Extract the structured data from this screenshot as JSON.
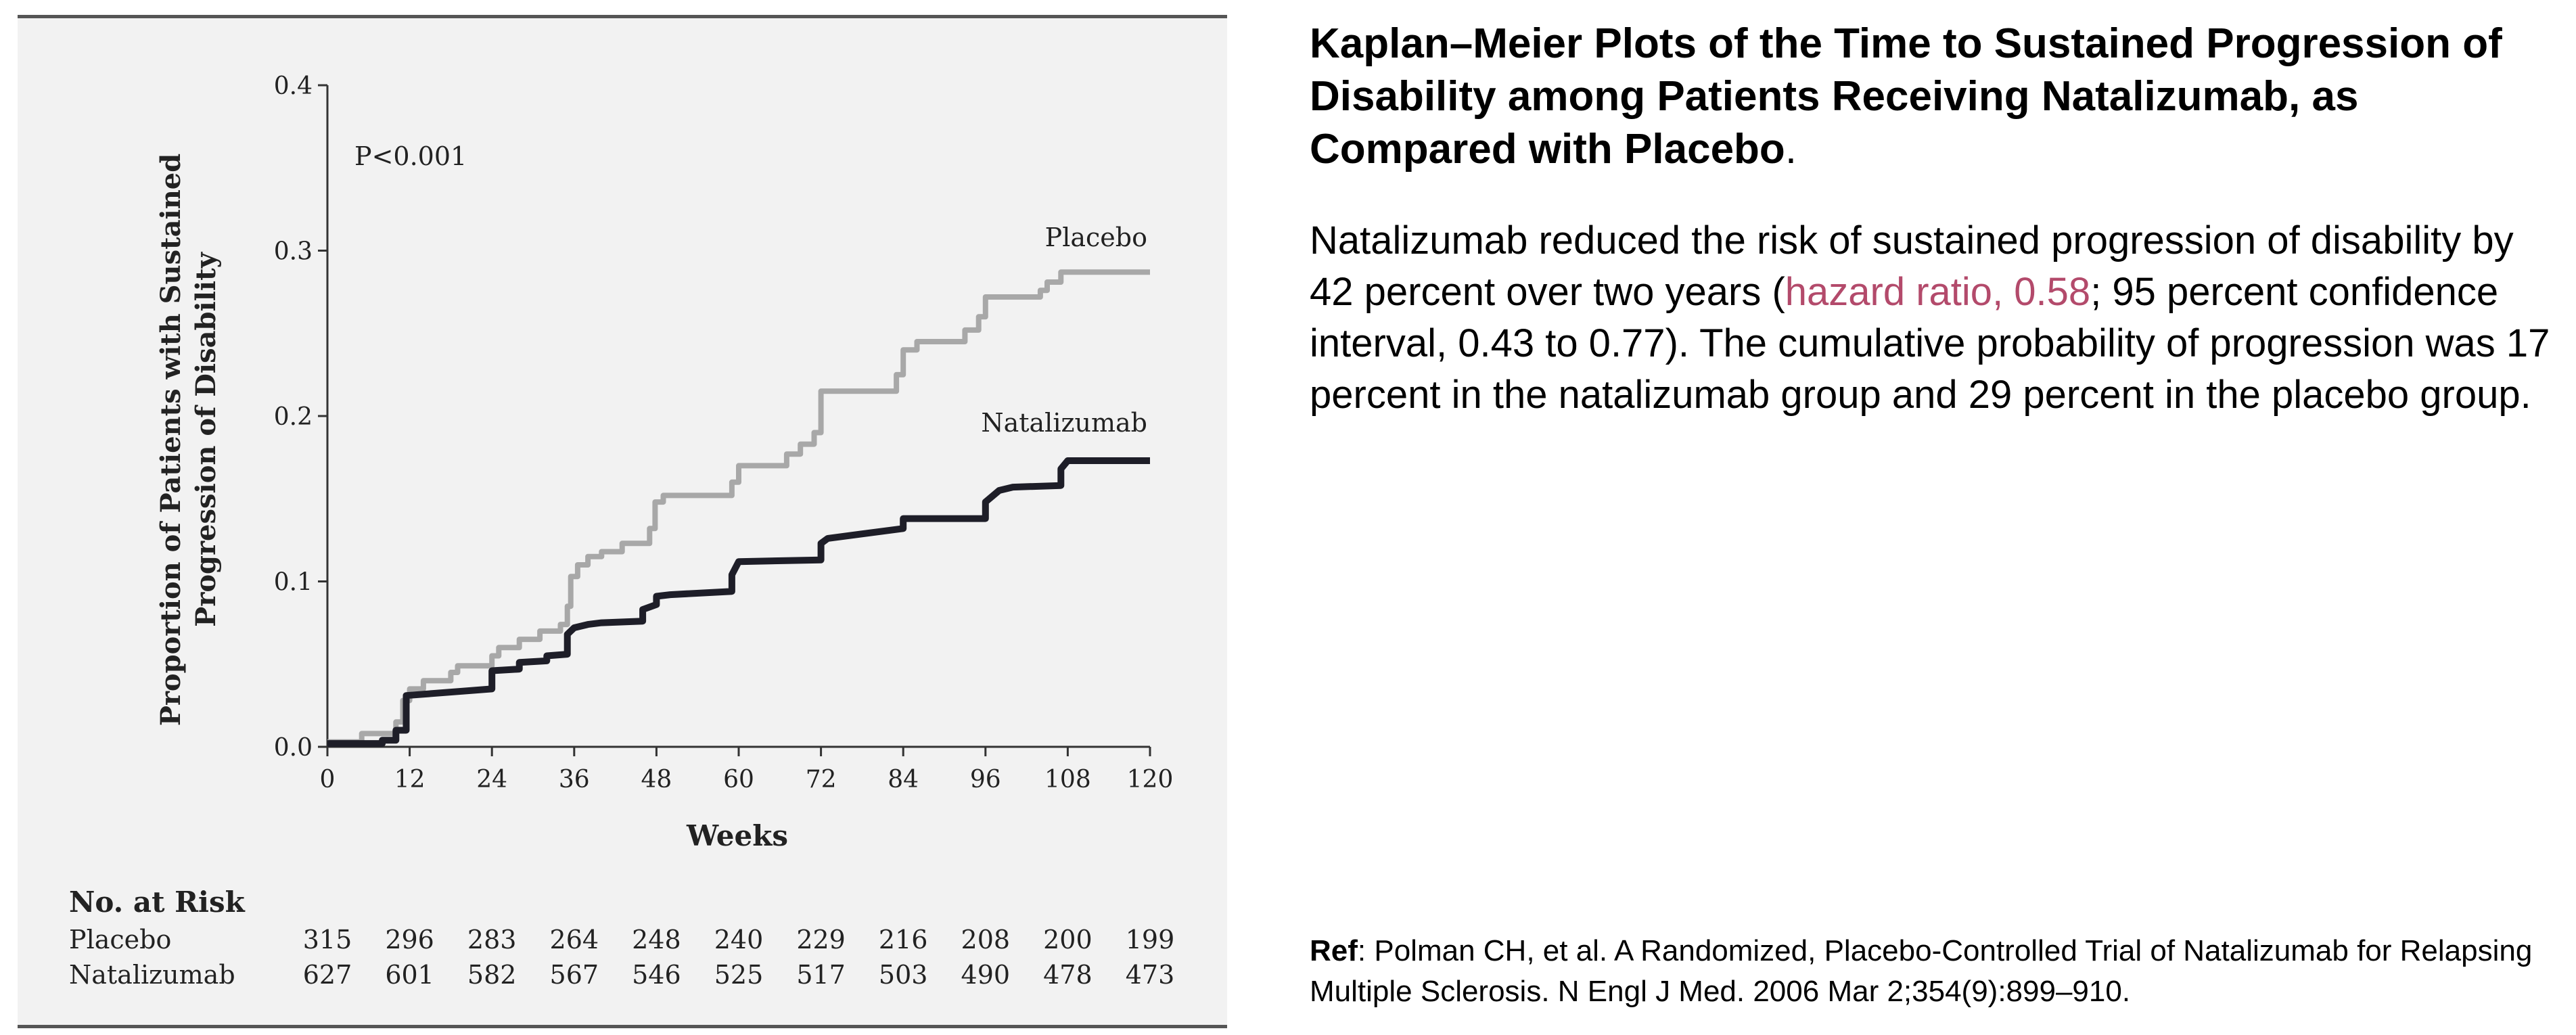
{
  "chart_data": {
    "type": "line",
    "title": "",
    "xlabel": "Weeks",
    "ylabel_line1": "Proportion of Patients with Sustained",
    "ylabel_line2": "Progression of Disability",
    "xlim": [
      0,
      120
    ],
    "ylim": [
      0,
      0.4
    ],
    "x_ticks": [
      "0",
      "12",
      "24",
      "36",
      "48",
      "60",
      "72",
      "84",
      "96",
      "108",
      "120"
    ],
    "y_ticks": [
      "0.0",
      "0.1",
      "0.2",
      "0.3",
      "0.4"
    ],
    "annotation": "P<0.001",
    "grid": false,
    "series": [
      {
        "name": "Placebo",
        "color": "#a8a8a8",
        "points": [
          [
            0,
            0.003
          ],
          [
            5,
            0.003
          ],
          [
            5,
            0.008
          ],
          [
            10,
            0.008
          ],
          [
            10,
            0.015
          ],
          [
            11,
            0.015
          ],
          [
            11,
            0.028
          ],
          [
            12,
            0.028
          ],
          [
            12,
            0.035
          ],
          [
            14,
            0.035
          ],
          [
            14,
            0.04
          ],
          [
            18,
            0.04
          ],
          [
            18,
            0.045
          ],
          [
            19,
            0.045
          ],
          [
            19,
            0.049
          ],
          [
            24,
            0.049
          ],
          [
            24,
            0.055
          ],
          [
            25,
            0.055
          ],
          [
            25,
            0.06
          ],
          [
            28,
            0.06
          ],
          [
            28,
            0.065
          ],
          [
            31,
            0.065
          ],
          [
            31,
            0.07
          ],
          [
            34,
            0.07
          ],
          [
            34,
            0.074
          ],
          [
            35,
            0.074
          ],
          [
            35,
            0.085
          ],
          [
            35.5,
            0.085
          ],
          [
            35.5,
            0.103
          ],
          [
            36.5,
            0.103
          ],
          [
            36.5,
            0.11
          ],
          [
            38,
            0.11
          ],
          [
            38,
            0.115
          ],
          [
            40,
            0.115
          ],
          [
            40,
            0.118
          ],
          [
            43,
            0.118
          ],
          [
            43,
            0.123
          ],
          [
            47,
            0.123
          ],
          [
            47,
            0.132
          ],
          [
            47.8,
            0.132
          ],
          [
            47.8,
            0.148
          ],
          [
            49,
            0.148
          ],
          [
            49,
            0.152
          ],
          [
            59,
            0.152
          ],
          [
            59,
            0.16
          ],
          [
            60,
            0.16
          ],
          [
            60,
            0.17
          ],
          [
            67,
            0.17
          ],
          [
            67,
            0.177
          ],
          [
            69,
            0.177
          ],
          [
            69,
            0.183
          ],
          [
            71,
            0.183
          ],
          [
            71,
            0.19
          ],
          [
            72,
            0.19
          ],
          [
            72,
            0.215
          ],
          [
            83,
            0.215
          ],
          [
            83,
            0.225
          ],
          [
            84,
            0.225
          ],
          [
            84,
            0.24
          ],
          [
            86,
            0.24
          ],
          [
            86,
            0.245
          ],
          [
            93,
            0.245
          ],
          [
            93,
            0.252
          ],
          [
            95,
            0.252
          ],
          [
            95,
            0.26
          ],
          [
            96,
            0.26
          ],
          [
            96,
            0.272
          ],
          [
            104,
            0.272
          ],
          [
            104,
            0.276
          ],
          [
            105,
            0.276
          ],
          [
            105,
            0.281
          ],
          [
            107,
            0.281
          ],
          [
            107,
            0.287
          ],
          [
            120,
            0.287
          ]
        ]
      },
      {
        "name": "Natalizumab",
        "color": "#1e1e28",
        "points": [
          [
            0,
            0.002
          ],
          [
            8,
            0.002
          ],
          [
            8,
            0.004
          ],
          [
            10,
            0.004
          ],
          [
            10,
            0.01
          ],
          [
            11.5,
            0.01
          ],
          [
            11.5,
            0.031
          ],
          [
            24,
            0.035
          ],
          [
            24,
            0.046
          ],
          [
            28,
            0.047
          ],
          [
            28,
            0.051
          ],
          [
            32,
            0.052
          ],
          [
            32,
            0.055
          ],
          [
            35,
            0.056
          ],
          [
            35,
            0.068
          ],
          [
            36,
            0.072
          ],
          [
            38,
            0.074
          ],
          [
            40,
            0.075
          ],
          [
            46,
            0.076
          ],
          [
            46,
            0.083
          ],
          [
            48,
            0.086
          ],
          [
            48,
            0.091
          ],
          [
            50,
            0.092
          ],
          [
            59,
            0.094
          ],
          [
            59,
            0.104
          ],
          [
            60,
            0.112
          ],
          [
            72,
            0.113
          ],
          [
            72,
            0.123
          ],
          [
            73,
            0.126
          ],
          [
            84,
            0.132
          ],
          [
            84,
            0.138
          ],
          [
            96,
            0.138
          ],
          [
            96,
            0.148
          ],
          [
            98,
            0.155
          ],
          [
            100,
            0.157
          ],
          [
            107,
            0.158
          ],
          [
            107,
            0.168
          ],
          [
            108,
            0.173
          ],
          [
            120,
            0.173
          ]
        ]
      }
    ]
  },
  "risk_table": {
    "heading": "No. at Risk",
    "rows": [
      {
        "label": "Placebo",
        "values": [
          "315",
          "296",
          "283",
          "264",
          "248",
          "240",
          "229",
          "216",
          "208",
          "200",
          "199"
        ]
      },
      {
        "label": "Natalizumab",
        "values": [
          "627",
          "601",
          "582",
          "567",
          "546",
          "525",
          "517",
          "503",
          "490",
          "478",
          "473"
        ]
      }
    ]
  },
  "text": {
    "title": "Kaplan–Meier Plots of the Time to Sustained Progression of Disability among Patients Receiving Natalizumab, as Compared with Placebo",
    "title_end": ".",
    "summary_a": "Natalizumab reduced the risk of sustained progression of disability by 42 percent over two years (",
    "summary_hr": "hazard ratio, 0.58",
    "summary_b": "; 95 percent confidence interval, 0.43 to 0.77). The cumulative probability of progression was 17 percent in the natalizumab group and 29 percent in the placebo group.",
    "ref_label": "Ref",
    "ref_text": ": Polman CH, et al. A Randomized, Placebo-Controlled Trial of Natalizumab for Relapsing Multiple Sclerosis. N Engl J Med. 2006 Mar 2;354(9):899–910."
  },
  "colors": {
    "accent": "#b34a6b",
    "panel_background": "#f2f2f2"
  }
}
